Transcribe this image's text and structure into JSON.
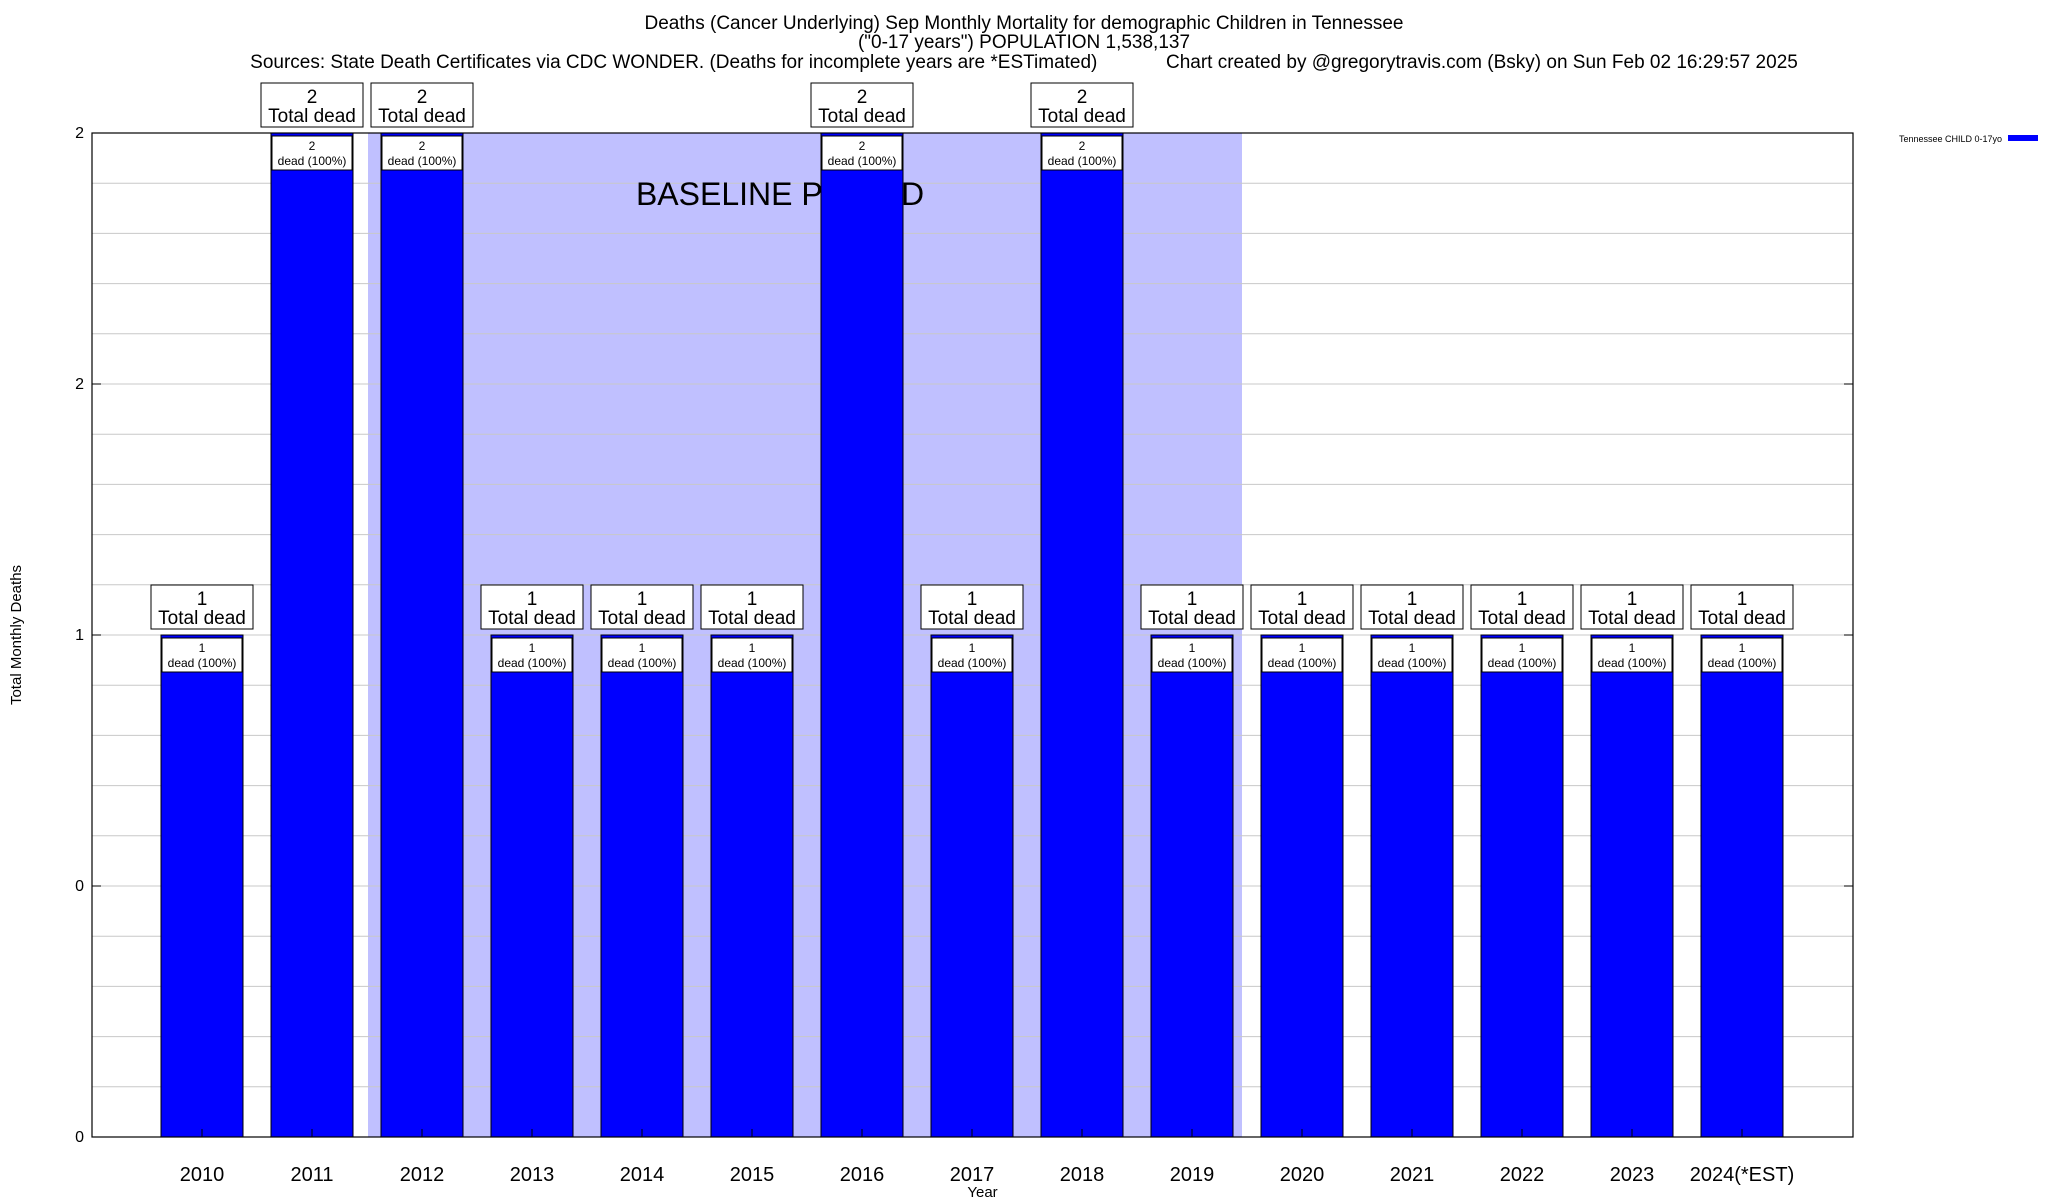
{
  "title_lines": [
    "Deaths (Cancer Underlying) Sep Monthly Mortality for demographic Children in Tennessee",
    "(\"0-17 years\") POPULATION 1,538,137",
    "Sources: State Death Certificates via CDC WONDER. (Deaths for incomplete years are *ESTimated)             Chart created by @gregorytravis.com (Bsky) on Sun Feb 02 16:29:57 2025"
  ],
  "chart_data": {
    "type": "bar",
    "categories": [
      "2010",
      "2011",
      "2012",
      "2013",
      "2014",
      "2015",
      "2016",
      "2017",
      "2018",
      "2019",
      "2020",
      "2021",
      "2022",
      "2023",
      "2024(*EST)"
    ],
    "series": [
      {
        "name": "Tennessee CHILD 0-17yo",
        "values": [
          1,
          2,
          2,
          1,
          1,
          1,
          2,
          1,
          2,
          1,
          1,
          1,
          1,
          1,
          1
        ],
        "color": "#0000ff"
      }
    ],
    "top_labels": [
      [
        "1",
        "Total dead"
      ],
      [
        "2",
        "Total dead"
      ],
      [
        "2",
        "Total dead"
      ],
      [
        "1",
        "Total dead"
      ],
      [
        "1",
        "Total dead"
      ],
      [
        "1",
        "Total dead"
      ],
      [
        "2",
        "Total dead"
      ],
      [
        "1",
        "Total dead"
      ],
      [
        "2",
        "Total dead"
      ],
      [
        "1",
        "Total dead"
      ],
      [
        "1",
        "Total dead"
      ],
      [
        "1",
        "Total dead"
      ],
      [
        "1",
        "Total dead"
      ],
      [
        "1",
        "Total dead"
      ],
      [
        "1",
        "Total dead"
      ]
    ],
    "inner_labels": [
      [
        "1",
        "dead (100%)"
      ],
      [
        "2",
        "dead (100%)"
      ],
      [
        "2",
        "dead (100%)"
      ],
      [
        "1",
        "dead (100%)"
      ],
      [
        "1",
        "dead (100%)"
      ],
      [
        "1",
        "dead (100%)"
      ],
      [
        "2",
        "dead (100%)"
      ],
      [
        "1",
        "dead (100%)"
      ],
      [
        "2",
        "dead (100%)"
      ],
      [
        "1",
        "dead (100%)"
      ],
      [
        "1",
        "dead (100%)"
      ],
      [
        "1",
        "dead (100%)"
      ],
      [
        "1",
        "dead (100%)"
      ],
      [
        "1",
        "dead (100%)"
      ],
      [
        "1",
        "dead (100%)"
      ]
    ],
    "xlabel": "Year",
    "ylabel": "Total Monthly Deaths",
    "ylim": [
      0,
      2
    ],
    "y_tick_values": [
      0,
      0.5,
      1,
      1.5,
      2
    ],
    "y_tick_labels": [
      "0",
      "0",
      "1",
      "2",
      "2"
    ],
    "grid": true,
    "baseline": {
      "label": "BASELINE PERIOD",
      "start_category": "2011",
      "end_category": "2019",
      "color": "#c0c0ff"
    },
    "legend_position": "top-right"
  }
}
